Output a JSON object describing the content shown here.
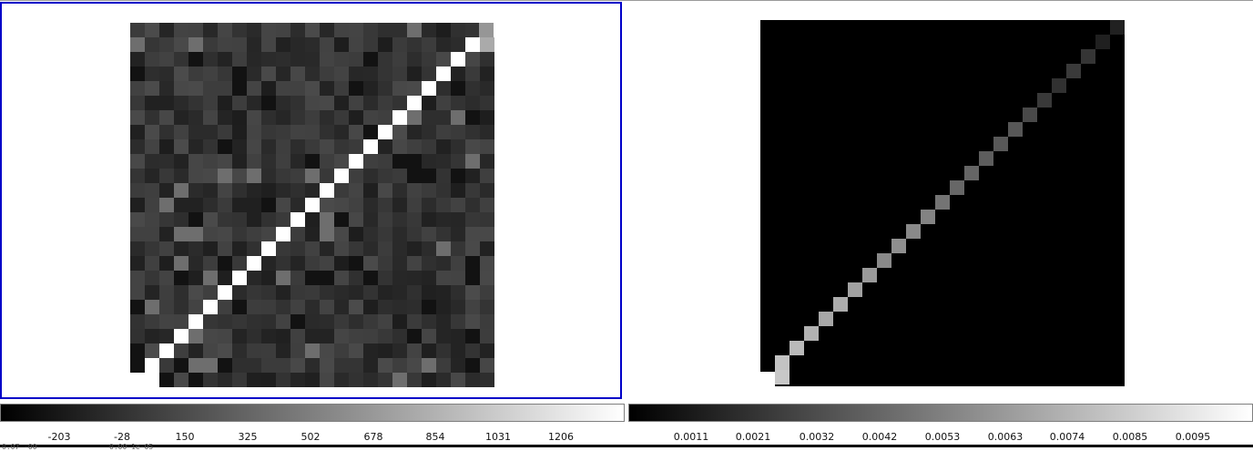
{
  "left_panel": {
    "colorbar": {
      "tick_labels": [
        "-203",
        "-28",
        "150",
        "325",
        "502",
        "678",
        "854",
        "1031",
        "1206"
      ],
      "min_value": -305,
      "max_value": 1370
    },
    "status_text": [
      "0.07 -00",
      "0.00 1e-05"
    ]
  },
  "right_panel": {
    "colorbar": {
      "tick_labels": [
        "0.0011",
        "0.0021",
        "0.0032",
        "0.0042",
        "0.0053",
        "0.0063",
        "0.0074",
        "0.0085",
        "0.0095"
      ]
    }
  },
  "colors": {
    "selected_border": "#0000c8",
    "background": "#ffffff",
    "colormap": "grayscale"
  }
}
